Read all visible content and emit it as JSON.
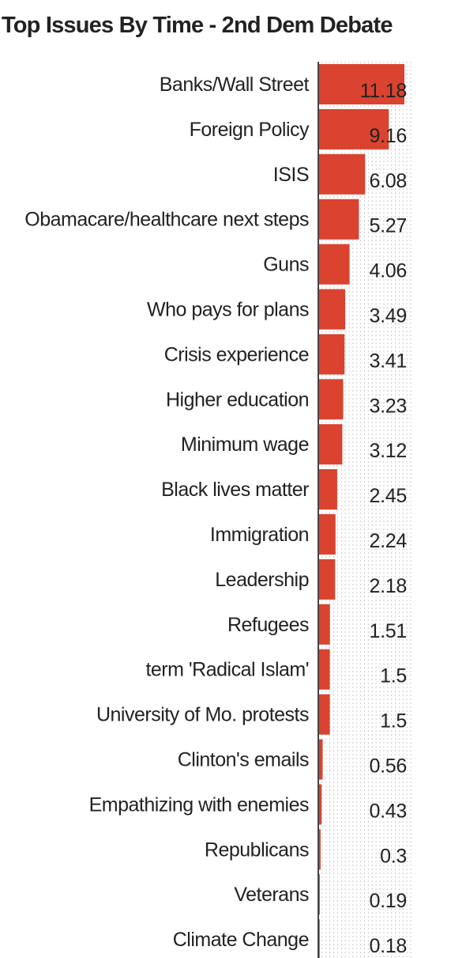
{
  "chart_data": {
    "type": "bar",
    "orientation": "horizontal",
    "title": "Top Issues By Time - 2nd Dem Debate",
    "xlabel": "",
    "ylabel": "",
    "categories": [
      "Banks/Wall Street",
      "Foreign Policy",
      "ISIS",
      "Obamacare/healthcare next steps",
      "Guns",
      "Who pays for plans",
      "Crisis experience",
      "Higher education",
      "Minimum wage",
      "Black lives matter",
      "Immigration",
      "Leadership",
      "Refugees",
      "term 'Radical Islam'",
      "University of Mo. protests",
      "Clinton's emails",
      "Empathizing with enemies",
      "Republicans",
      "Veterans",
      "Climate Change"
    ],
    "values": [
      11.18,
      9.16,
      6.08,
      5.27,
      4.06,
      3.49,
      3.41,
      3.23,
      3.12,
      2.45,
      2.24,
      2.18,
      1.51,
      1.5,
      1.5,
      0.56,
      0.43,
      0.3,
      0.19,
      0.18
    ],
    "value_labels": [
      "11.18",
      "9.16",
      "6.08",
      "5.27",
      "4.06",
      "3.49",
      "3.41",
      "3.23",
      "3.12",
      "2.45",
      "2.24",
      "2.18",
      "1.51",
      "1.5",
      "1.5",
      "0.56",
      "0.43",
      "0.3",
      "0.19",
      "0.18"
    ],
    "xlim": [
      0,
      12
    ],
    "grid": true,
    "legend": "none",
    "bar_color": "#d9432f",
    "axis_color": "#444444",
    "grid_color": "#cccccc"
  }
}
